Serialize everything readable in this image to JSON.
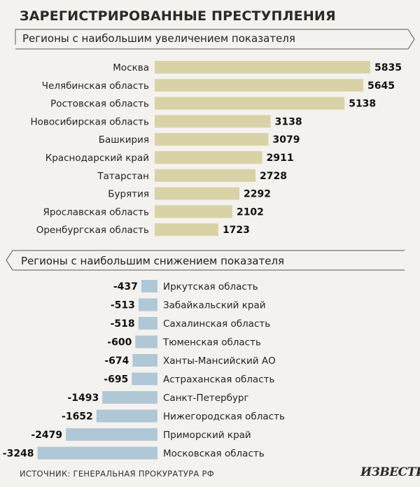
{
  "title": "ЗАРЕГИСТРИРОВАННЫЕ ПРЕСТУПЛЕНИЯ",
  "source": "ИСТОЧНИК: ГЕНЕРАЛЬНАЯ ПРОКУРАТУРА РФ",
  "logo": "ИЗВЕСТИЯ",
  "colors": {
    "increase_bar": "#d8d2a6",
    "decrease_bar": "#b0c7d6",
    "background": "#f3f2ee"
  },
  "chart_data": [
    {
      "type": "bar",
      "orientation": "horizontal",
      "title": "Регионы с наибольшим увеличением показателя",
      "categories": [
        "Москва",
        "Челябинская область",
        "Ростовская область",
        "Новосибирская область",
        "Башкирия",
        "Краснодарский край",
        "Татарстан",
        "Бурятия",
        "Ярославская область",
        "Оренбургская область"
      ],
      "values": [
        5835,
        5645,
        5138,
        3138,
        3079,
        2911,
        2728,
        2292,
        2102,
        1723
      ],
      "value_labels": [
        "5835",
        "5645",
        "5138",
        "3138",
        "3079",
        "2911",
        "2728",
        "2292",
        "2102",
        "1723"
      ]
    },
    {
      "type": "bar",
      "orientation": "horizontal",
      "title": "Регионы с наибольшим снижением показателя",
      "categories": [
        "Иркутская область",
        "Забайкальский край",
        "Сахалинская область",
        "Тюменская область",
        "Ханты-Мансийский АО",
        "Астраханская область",
        "Санкт-Петербург",
        "Нижегородская область",
        "Приморский край",
        "Московская область"
      ],
      "values": [
        -437,
        -513,
        -518,
        -600,
        -674,
        -695,
        -1493,
        -1652,
        -2479,
        -3248
      ],
      "value_labels": [
        "-437",
        "-513",
        "-518",
        "-600",
        "-674",
        "-695",
        "-1493",
        "-1652",
        "-2479",
        "-3248"
      ]
    }
  ]
}
